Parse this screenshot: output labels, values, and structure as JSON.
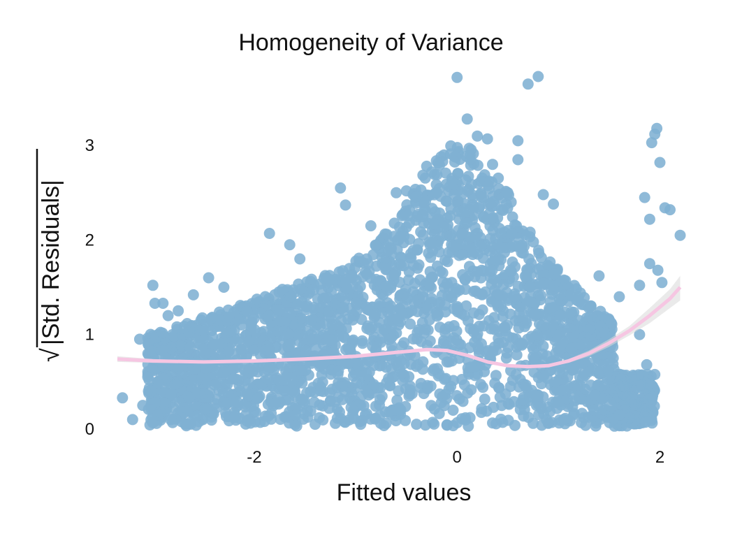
{
  "chart_data": {
    "type": "scatter",
    "title": "Homogeneity of Variance",
    "xlabel": "Fitted values",
    "ylabel": "√|Std. Residuals|",
    "ylabel_radical": "√",
    "ylabel_text": "|Std. Residuals|",
    "xlim": [
      -3.35,
      2.3
    ],
    "ylim": [
      -0.06,
      3.8
    ],
    "x_ticks": [
      -2,
      0,
      2
    ],
    "x_tick_labels": [
      "-2",
      "0",
      "2"
    ],
    "y_ticks": [
      0,
      1,
      2,
      3
    ],
    "y_tick_labels": [
      "0",
      "1",
      "2",
      "3"
    ],
    "grid": false,
    "legend": "none",
    "colors": {
      "points": "#7fb1d3",
      "smooth": "#f6c6e2",
      "band": "#d9d9d9"
    },
    "series": [
      {
        "kind": "points",
        "x": [
          -3.3,
          -3.2,
          -3.13,
          -3.0,
          -2.98,
          -2.9,
          -2.85,
          -2.75,
          -2.6,
          -2.45,
          -2.3,
          -1.85,
          -1.65,
          -1.55,
          -1.15,
          -1.1,
          -0.85,
          -0.6,
          -0.5,
          -0.3,
          -0.25,
          -0.2,
          -0.05,
          0.0,
          0.1,
          0.12,
          0.2,
          0.3,
          0.35,
          0.5,
          0.6,
          0.6,
          0.7,
          0.8,
          0.85,
          0.95,
          1.1,
          1.2,
          1.3,
          1.4,
          1.6,
          1.65,
          1.75,
          1.8,
          1.85,
          1.87,
          1.9,
          1.92,
          1.95,
          1.97,
          2.0,
          2.02,
          1.98,
          2.05,
          2.1,
          2.2,
          1.8,
          1.7,
          1.6,
          1.9,
          -3.1,
          -3.05,
          -2.95,
          -2.7,
          -2.2,
          -1.9,
          -1.4,
          -1.2,
          -0.95,
          -0.7,
          -0.4,
          0.45,
          0.75,
          1.05,
          1.25,
          1.35,
          1.5,
          1.15,
          0.9,
          -0.1
        ],
        "y": [
          0.33,
          0.1,
          0.95,
          1.52,
          1.33,
          1.33,
          1.2,
          1.25,
          1.42,
          1.6,
          1.5,
          2.07,
          1.95,
          1.8,
          2.55,
          2.37,
          2.15,
          2.5,
          2.52,
          2.78,
          2.72,
          2.5,
          2.62,
          3.72,
          3.28,
          2.97,
          3.1,
          3.07,
          2.8,
          2.5,
          2.85,
          3.05,
          3.65,
          3.73,
          2.48,
          2.38,
          1.35,
          1.15,
          1.05,
          1.62,
          1.4,
          0.45,
          0.52,
          1.52,
          2.45,
          0.68,
          2.22,
          3.03,
          3.12,
          3.18,
          2.82,
          1.55,
          1.68,
          2.34,
          2.32,
          2.05,
          1.0,
          0.12,
          0.15,
          1.75,
          0.25,
          0.55,
          0.15,
          0.18,
          0.12,
          0.08,
          0.05,
          0.06,
          0.05,
          0.06,
          0.05,
          0.07,
          0.06,
          0.1,
          0.12,
          0.2,
          0.25,
          0.15,
          0.06,
          0.04
        ]
      },
      {
        "kind": "smooth",
        "x": [
          -3.35,
          -3.0,
          -2.5,
          -2.0,
          -1.5,
          -1.0,
          -0.6,
          -0.3,
          -0.1,
          0.1,
          0.3,
          0.5,
          0.7,
          0.9,
          1.1,
          1.3,
          1.5,
          1.7,
          1.9,
          2.1,
          2.2
        ],
        "y": [
          0.74,
          0.72,
          0.71,
          0.72,
          0.74,
          0.77,
          0.81,
          0.84,
          0.83,
          0.78,
          0.71,
          0.67,
          0.66,
          0.67,
          0.72,
          0.8,
          0.91,
          1.04,
          1.2,
          1.38,
          1.5
        ],
        "band_lower": [
          0.71,
          0.7,
          0.7,
          0.71,
          0.73,
          0.76,
          0.8,
          0.83,
          0.82,
          0.77,
          0.7,
          0.66,
          0.65,
          0.66,
          0.7,
          0.77,
          0.87,
          0.99,
          1.12,
          1.28,
          1.36
        ],
        "band_upper": [
          0.77,
          0.74,
          0.72,
          0.73,
          0.75,
          0.78,
          0.82,
          0.85,
          0.84,
          0.79,
          0.72,
          0.68,
          0.67,
          0.68,
          0.74,
          0.83,
          0.95,
          1.09,
          1.28,
          1.48,
          1.62
        ]
      }
    ]
  }
}
